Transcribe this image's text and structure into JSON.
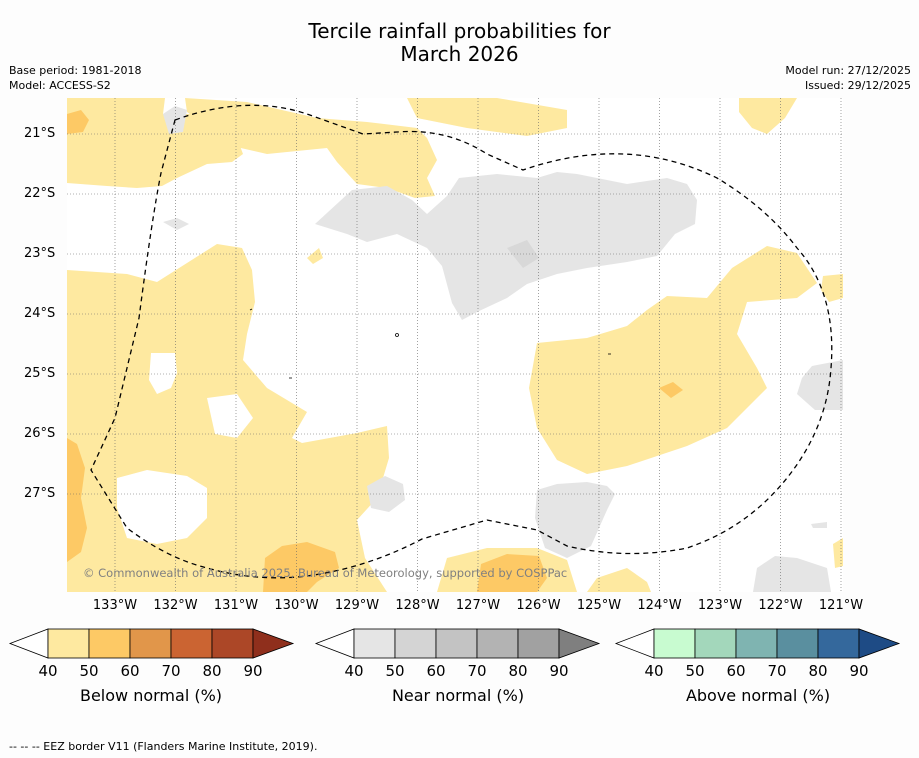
{
  "title_line1": "Tercile rainfall probabilities for",
  "title_line2": "March 2026",
  "base_period": "Base period: 1981-2018",
  "model": "Model: ACCESS-S2",
  "model_run": "Model run: 27/12/2025",
  "issued": "Issued: 29/12/2025",
  "map": {
    "lat_labels": [
      "21°S",
      "22°S",
      "23°S",
      "24°S",
      "25°S",
      "26°S",
      "27°S"
    ],
    "lon_labels": [
      "133°W",
      "132°W",
      "131°W",
      "130°W",
      "129°W",
      "128°W",
      "127°W",
      "126°W",
      "125°W",
      "124°W",
      "123°W",
      "122°W",
      "121°W"
    ],
    "copyright": "© Commonwealth of Australia 2025, Bureau of Meteorology, supported by COSPPac",
    "colors": {
      "below_50": "#fee9a0",
      "below_60": "#fdc965",
      "near_50": "#e5e5e5",
      "border": "#000000"
    }
  },
  "colorbars": [
    {
      "name": "below",
      "label": "Below normal (%)",
      "ticks": [
        "40",
        "50",
        "60",
        "70",
        "80",
        "90"
      ],
      "colors": [
        "#ffffff",
        "#fee9a0",
        "#fdc965",
        "#e1964a",
        "#cb6432",
        "#ac4727",
        "#8f2f1c"
      ]
    },
    {
      "name": "near",
      "label": "Near normal (%)",
      "ticks": [
        "40",
        "50",
        "60",
        "70",
        "80",
        "90"
      ],
      "colors": [
        "#ffffff",
        "#e5e5e5",
        "#d4d4d4",
        "#c3c3c3",
        "#b3b3b3",
        "#a1a1a1",
        "#7f7f7f"
      ]
    },
    {
      "name": "above",
      "label": "Above normal (%)",
      "ticks": [
        "40",
        "50",
        "60",
        "70",
        "80",
        "90"
      ],
      "colors": [
        "#ffffff",
        "#c8fbd0",
        "#a3d7bb",
        "#7fb4b1",
        "#5a8f9f",
        "#34689c",
        "#1e4b85"
      ]
    }
  ],
  "footer": "--  --  -- EEZ border V11 (Flanders Marine Institute, 2019)."
}
